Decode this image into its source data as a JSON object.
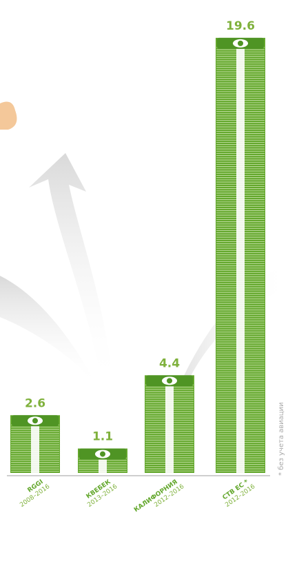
{
  "chart_data": {
    "type": "bar",
    "categories": [
      "RGGI",
      "КВЕБЕК",
      "КАЛИФОРНИЯ",
      "СТВ ЕС *"
    ],
    "periods": [
      "2008–2016",
      "2013–2016",
      "2012–2016",
      "2012–2016"
    ],
    "values": [
      2.6,
      1.1,
      4.4,
      19.6
    ],
    "color": "#63a72c",
    "label_color": "#7fb13c",
    "note": "* без учета авиации"
  }
}
